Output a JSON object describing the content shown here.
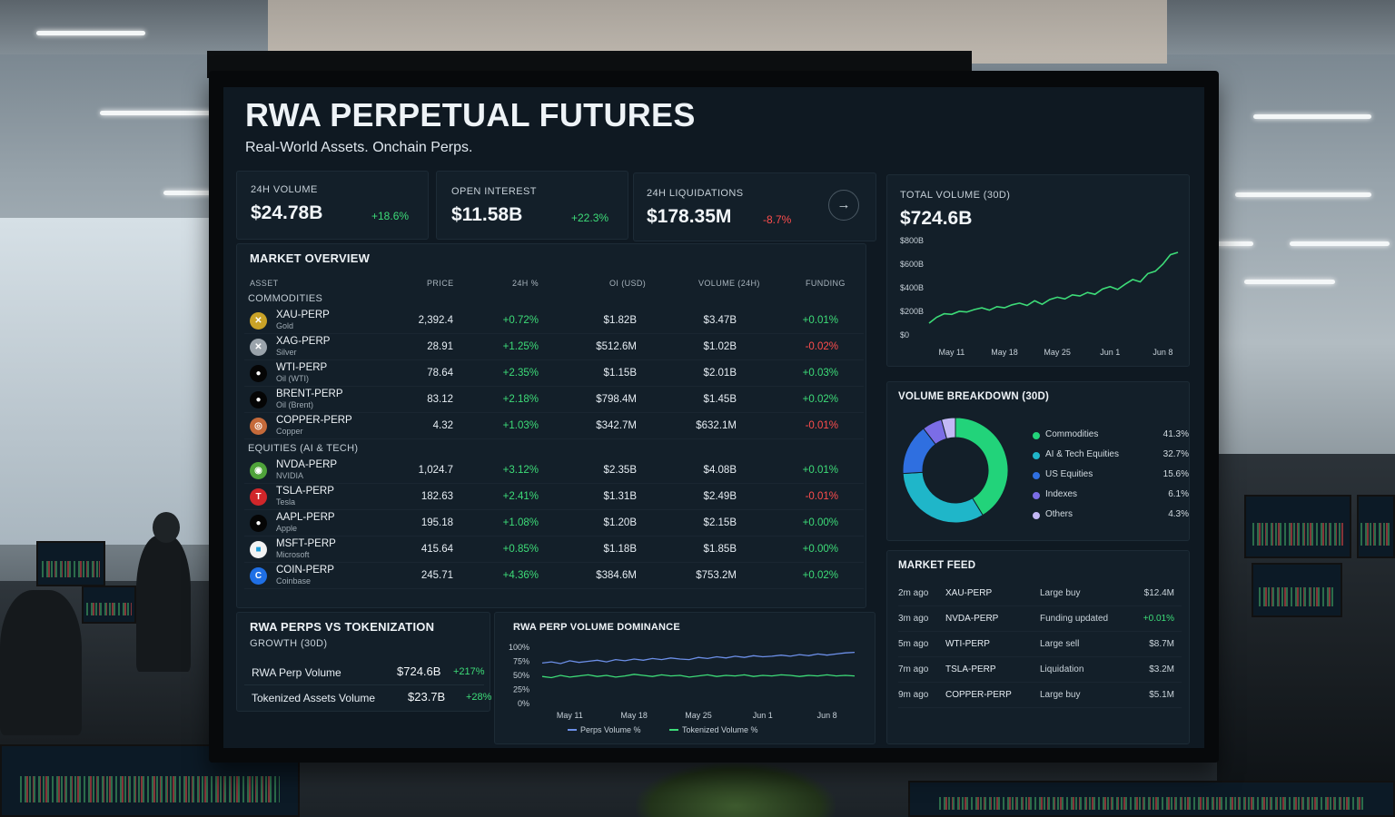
{
  "header": {
    "title": "RWA PERPETUAL FUTURES",
    "subtitle": "Real-World Assets. Onchain Perps."
  },
  "stats": [
    {
      "label": "24H VOLUME",
      "value": "$24.78B",
      "change": "+18.6%",
      "dir": "pos"
    },
    {
      "label": "OPEN INTEREST",
      "value": "$11.58B",
      "change": "+22.3%",
      "dir": "pos"
    },
    {
      "label": "24H LIQUIDATIONS",
      "value": "$178.35M",
      "change": "-8.7%",
      "dir": "neg"
    }
  ],
  "total_volume": {
    "label": "TOTAL VOLUME (30D)",
    "value": "$724.6B",
    "y_ticks": [
      "$800B",
      "$600B",
      "$400B",
      "$200B",
      "$0"
    ],
    "x_ticks": [
      "May 11",
      "May 18",
      "May 25",
      "Jun 1",
      "Jun 8"
    ]
  },
  "market_overview": {
    "title": "MARKET OVERVIEW",
    "columns": [
      "ASSET",
      "PRICE",
      "24H %",
      "OI (USD)",
      "VOLUME (24H)",
      "FUNDING"
    ],
    "groups": [
      {
        "name": "COMMODITIES",
        "rows": [
          {
            "sym": "XAU-PERP",
            "desc": "Gold",
            "price": "2,392.4",
            "chg": "+0.72%",
            "oi": "$1.82B",
            "vol": "$3.47B",
            "fund": "+0.01%",
            "fdir": "pos",
            "icon": "gold-icon",
            "glyph": "✕",
            "color": "#c9a227"
          },
          {
            "sym": "XAG-PERP",
            "desc": "Silver",
            "price": "28.91",
            "chg": "+1.25%",
            "oi": "$512.6M",
            "vol": "$1.02B",
            "fund": "-0.02%",
            "fdir": "neg",
            "icon": "silver-icon",
            "glyph": "✕",
            "color": "#9aa3ab"
          },
          {
            "sym": "WTI-PERP",
            "desc": "Oil (WTI)",
            "price": "78.64",
            "chg": "+2.35%",
            "oi": "$1.15B",
            "vol": "$2.01B",
            "fund": "+0.03%",
            "fdir": "pos",
            "icon": "oil-drop-icon",
            "glyph": "●",
            "color": "#050505"
          },
          {
            "sym": "BRENT-PERP",
            "desc": "Oil (Brent)",
            "price": "83.12",
            "chg": "+2.18%",
            "oi": "$798.4M",
            "vol": "$1.45B",
            "fund": "+0.02%",
            "fdir": "pos",
            "icon": "oil-drop-icon",
            "glyph": "●",
            "color": "#050505"
          },
          {
            "sym": "COPPER-PERP",
            "desc": "Copper",
            "price": "4.32",
            "chg": "+1.03%",
            "oi": "$342.7M",
            "vol": "$632.1M",
            "fund": "-0.01%",
            "fdir": "neg",
            "icon": "copper-icon",
            "glyph": "◎",
            "color": "#c56a3a"
          }
        ]
      },
      {
        "name": "EQUITIES (AI & TECH)",
        "rows": [
          {
            "sym": "NVDA-PERP",
            "desc": "NVIDIA",
            "price": "1,024.7",
            "chg": "+3.12%",
            "oi": "$2.35B",
            "vol": "$4.08B",
            "fund": "+0.01%",
            "fdir": "pos",
            "icon": "nvidia-icon",
            "glyph": "◉",
            "color": "#4fa33a"
          },
          {
            "sym": "TSLA-PERP",
            "desc": "Tesla",
            "price": "182.63",
            "chg": "+2.41%",
            "oi": "$1.31B",
            "vol": "$2.49B",
            "fund": "-0.01%",
            "fdir": "neg",
            "icon": "tesla-icon",
            "glyph": "T",
            "color": "#d0262a"
          },
          {
            "sym": "AAPL-PERP",
            "desc": "Apple",
            "price": "195.18",
            "chg": "+1.08%",
            "oi": "$1.20B",
            "vol": "$2.15B",
            "fund": "+0.00%",
            "fdir": "pos",
            "icon": "apple-icon",
            "glyph": "●",
            "color": "#050505"
          },
          {
            "sym": "MSFT-PERP",
            "desc": "Microsoft",
            "price": "415.64",
            "chg": "+0.85%",
            "oi": "$1.18B",
            "vol": "$1.85B",
            "fund": "+0.00%",
            "fdir": "pos",
            "icon": "microsoft-icon",
            "glyph": "■",
            "color": "#f2f2f2"
          },
          {
            "sym": "COIN-PERP",
            "desc": "Coinbase",
            "price": "245.71",
            "chg": "+4.36%",
            "oi": "$384.6M",
            "vol": "$753.2M",
            "fund": "+0.02%",
            "fdir": "pos",
            "icon": "coinbase-icon",
            "glyph": "C",
            "color": "#1f6fe5"
          }
        ]
      }
    ]
  },
  "breakdown": {
    "title": "VOLUME BREAKDOWN (30D)",
    "items": [
      {
        "label": "Commodities",
        "pct": "41.3%",
        "value": 41.3,
        "color": "#22d37a"
      },
      {
        "label": "AI & Tech Equities",
        "pct": "32.7%",
        "value": 32.7,
        "color": "#1fb6c9"
      },
      {
        "label": "US Equities",
        "pct": "15.6%",
        "value": 15.6,
        "color": "#2f6fe0"
      },
      {
        "label": "Indexes",
        "pct": "6.1%",
        "value": 6.1,
        "color": "#7b6de6"
      },
      {
        "label": "Others",
        "pct": "4.3%",
        "value": 4.3,
        "color": "#c3b8f5"
      }
    ]
  },
  "feed": {
    "title": "MARKET FEED",
    "rows": [
      {
        "time": "2m ago",
        "sym": "XAU-PERP",
        "event": "Large buy",
        "val": "$12.4M",
        "dir": ""
      },
      {
        "time": "3m ago",
        "sym": "NVDA-PERP",
        "event": "Funding updated",
        "val": "+0.01%",
        "dir": "pos"
      },
      {
        "time": "5m ago",
        "sym": "WTI-PERP",
        "event": "Large sell",
        "val": "$8.7M",
        "dir": ""
      },
      {
        "time": "7m ago",
        "sym": "TSLA-PERP",
        "event": "Liquidation",
        "val": "$3.2M",
        "dir": ""
      },
      {
        "time": "9m ago",
        "sym": "COPPER-PERP",
        "event": "Large buy",
        "val": "$5.1M",
        "dir": ""
      }
    ]
  },
  "growth": {
    "title": "RWA PERPS VS TOKENIZATION",
    "subtitle": "GROWTH (30D)",
    "rows": [
      {
        "label": "RWA Perp Volume",
        "value": "$724.6B",
        "change": "+217%"
      },
      {
        "label": "Tokenized Assets Volume",
        "value": "$23.7B",
        "change": "+28%"
      }
    ]
  },
  "dominance": {
    "title": "RWA PERP VOLUME DOMINANCE",
    "y_ticks": [
      "100%",
      "75%",
      "50%",
      "25%",
      "0%"
    ],
    "x_ticks": [
      "May 11",
      "May 18",
      "May 25",
      "Jun 1",
      "Jun 8"
    ],
    "legend": [
      "Perps Volume %",
      "Tokenized Volume %"
    ],
    "colors": [
      "#6c8fe8",
      "#3ddc78"
    ]
  },
  "chart_data": [
    {
      "type": "line",
      "title": "TOTAL VOLUME (30D)",
      "x": [
        "May 8",
        "May 9",
        "May 10",
        "May 11",
        "May 12",
        "May 13",
        "May 14",
        "May 15",
        "May 16",
        "May 17",
        "May 18",
        "May 19",
        "May 20",
        "May 21",
        "May 22",
        "May 23",
        "May 24",
        "May 25",
        "May 26",
        "May 27",
        "May 28",
        "May 29",
        "May 30",
        "May 31",
        "Jun 1",
        "Jun 2",
        "Jun 3",
        "Jun 4",
        "Jun 5",
        "Jun 6",
        "Jun 7",
        "Jun 8",
        "Jun 9",
        "Jun 10"
      ],
      "series": [
        {
          "values": [
            100,
            150,
            180,
            175,
            200,
            195,
            215,
            230,
            210,
            240,
            230,
            255,
            270,
            250,
            290,
            260,
            300,
            320,
            305,
            340,
            330,
            360,
            345,
            390,
            410,
            385,
            430,
            470,
            450,
            520,
            540,
            600,
            680,
            700
          ]
        }
      ],
      "ylim": [
        0,
        800
      ],
      "y_unit": "$B",
      "color": "#3ddc78"
    },
    {
      "type": "pie",
      "title": "VOLUME BREAKDOWN (30D)",
      "categories": [
        "Commodities",
        "AI & Tech Equities",
        "US Equities",
        "Indexes",
        "Others"
      ],
      "values": [
        41.3,
        32.7,
        15.6,
        6.1,
        4.3
      ]
    },
    {
      "type": "line",
      "title": "RWA PERP VOLUME DOMINANCE",
      "x": [
        "May 8",
        "May 9",
        "May 10",
        "May 11",
        "May 12",
        "May 13",
        "May 14",
        "May 15",
        "May 16",
        "May 17",
        "May 18",
        "May 19",
        "May 20",
        "May 21",
        "May 22",
        "May 23",
        "May 24",
        "May 25",
        "May 26",
        "May 27",
        "May 28",
        "May 29",
        "May 30",
        "May 31",
        "Jun 1",
        "Jun 2",
        "Jun 3",
        "Jun 4",
        "Jun 5",
        "Jun 6",
        "Jun 7",
        "Jun 8",
        "Jun 9",
        "Jun 10",
        "Jun 11"
      ],
      "series": [
        {
          "name": "Perps Volume %",
          "values": [
            72,
            74,
            71,
            76,
            73,
            75,
            77,
            74,
            78,
            76,
            79,
            77,
            80,
            78,
            81,
            79,
            78,
            82,
            80,
            83,
            81,
            84,
            82,
            85,
            83,
            84,
            86,
            84,
            87,
            85,
            88,
            86,
            88,
            90,
            91
          ]
        },
        {
          "name": "Tokenized Volume %",
          "values": [
            48,
            46,
            50,
            47,
            49,
            51,
            48,
            50,
            47,
            49,
            52,
            50,
            48,
            51,
            49,
            50,
            47,
            49,
            51,
            48,
            50,
            49,
            51,
            48,
            50,
            49,
            51,
            50,
            48,
            50,
            49,
            51,
            49,
            50,
            49
          ]
        }
      ],
      "ylim": [
        0,
        100
      ]
    }
  ]
}
